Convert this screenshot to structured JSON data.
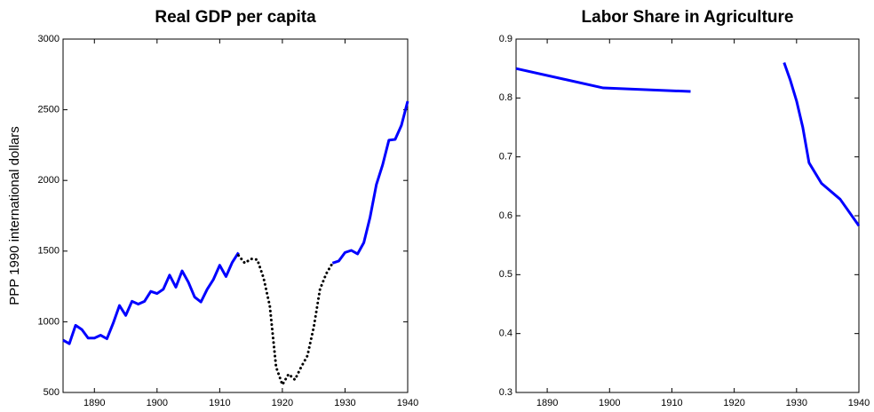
{
  "chart_data": [
    {
      "type": "line",
      "title": "Real GDP per capita",
      "ylabel": "PPP 1990 international dollars",
      "xlim": [
        1885,
        1940
      ],
      "ylim": [
        500,
        3000
      ],
      "xticks": [
        1890,
        1900,
        1910,
        1920,
        1930,
        1940
      ],
      "yticks": [
        500,
        1000,
        1500,
        2000,
        2500,
        3000
      ],
      "x": [
        1885,
        1886,
        1887,
        1888,
        1889,
        1890,
        1891,
        1892,
        1893,
        1894,
        1895,
        1896,
        1897,
        1898,
        1899,
        1900,
        1901,
        1902,
        1903,
        1904,
        1905,
        1906,
        1907,
        1908,
        1909,
        1910,
        1911,
        1912,
        1913,
        1914,
        1915,
        1916,
        1917,
        1918,
        1919,
        1920,
        1921,
        1922,
        1923,
        1924,
        1925,
        1926,
        1927,
        1928,
        1929,
        1930,
        1931,
        1932,
        1933,
        1934,
        1935,
        1936,
        1937,
        1938,
        1939,
        1940
      ],
      "series": [
        {
          "color": "#0000ff",
          "line_style": "solid",
          "values": [
            870,
            845,
            975,
            945,
            885,
            885,
            905,
            880,
            990,
            1115,
            1045,
            1145,
            1125,
            1145,
            1215,
            1200,
            1230,
            1330,
            1245,
            1360,
            1280,
            1175,
            1140,
            1230,
            1300,
            1400,
            1320,
            1420,
            1490,
            null,
            null,
            null,
            null,
            null,
            null,
            null,
            null,
            null,
            null,
            null,
            null,
            null,
            null,
            1415,
            1430,
            1490,
            1505,
            1480,
            1560,
            1740,
            1970,
            2110,
            2285,
            2290,
            2390,
            2560
          ]
        },
        {
          "color": "#000000",
          "line_style": "dotted",
          "values": [
            null,
            null,
            null,
            null,
            null,
            null,
            null,
            null,
            null,
            null,
            null,
            null,
            null,
            null,
            null,
            null,
            null,
            null,
            null,
            null,
            null,
            null,
            null,
            null,
            null,
            null,
            null,
            null,
            1470,
            1415,
            1445,
            1440,
            1310,
            1110,
            680,
            555,
            630,
            590,
            680,
            760,
            960,
            1230,
            1340,
            1415,
            null,
            null,
            null,
            null,
            null,
            null,
            null,
            null,
            null,
            null,
            null,
            null
          ]
        }
      ]
    },
    {
      "type": "line",
      "title": "Labor Share in Agriculture",
      "xlim": [
        1885,
        1940
      ],
      "ylim": [
        0.3,
        0.9
      ],
      "xticks": [
        1890,
        1900,
        1910,
        1920,
        1930,
        1940
      ],
      "yticks": [
        0.3,
        0.4,
        0.5,
        0.6,
        0.7,
        0.8,
        0.9
      ],
      "series": [
        {
          "color": "#0000ff",
          "line_style": "solid",
          "x": [
            1885,
            1899,
            1913
          ],
          "values": [
            0.85,
            0.817,
            0.811
          ]
        },
        {
          "color": "#0000ff",
          "line_style": "solid",
          "x": [
            1928,
            1929,
            1930,
            1931,
            1932,
            1934,
            1937,
            1940
          ],
          "values": [
            0.86,
            0.83,
            0.795,
            0.75,
            0.69,
            0.655,
            0.628,
            0.583
          ]
        }
      ]
    }
  ]
}
